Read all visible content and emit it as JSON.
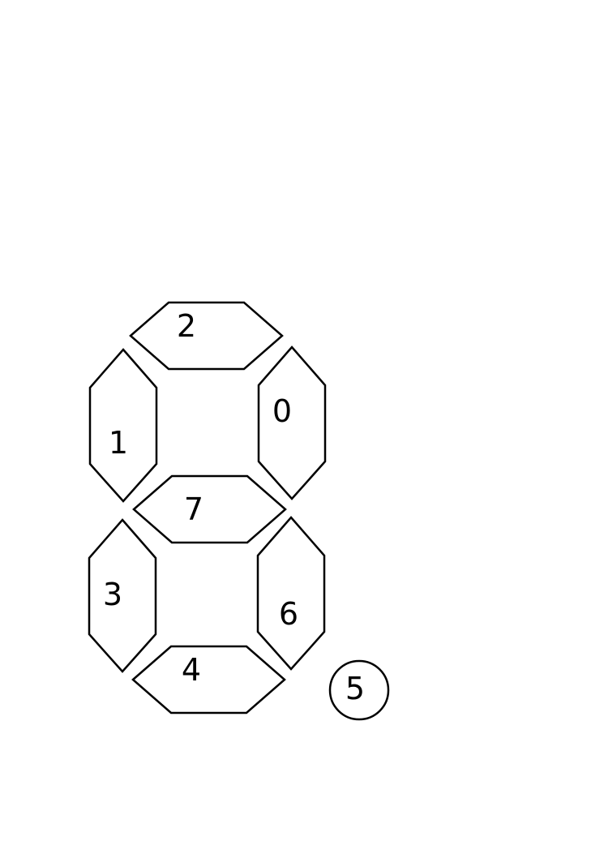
{
  "segments": [
    {
      "id": "seg-0",
      "label": "0"
    },
    {
      "id": "seg-1",
      "label": "1"
    },
    {
      "id": "seg-2",
      "label": "2"
    },
    {
      "id": "seg-3",
      "label": "3"
    },
    {
      "id": "seg-4",
      "label": "4"
    },
    {
      "id": "seg-5",
      "label": "5"
    },
    {
      "id": "seg-6",
      "label": "6"
    },
    {
      "id": "seg-7",
      "label": "7"
    }
  ],
  "stroke_color": "#000000",
  "fill_color": "#ffffff"
}
